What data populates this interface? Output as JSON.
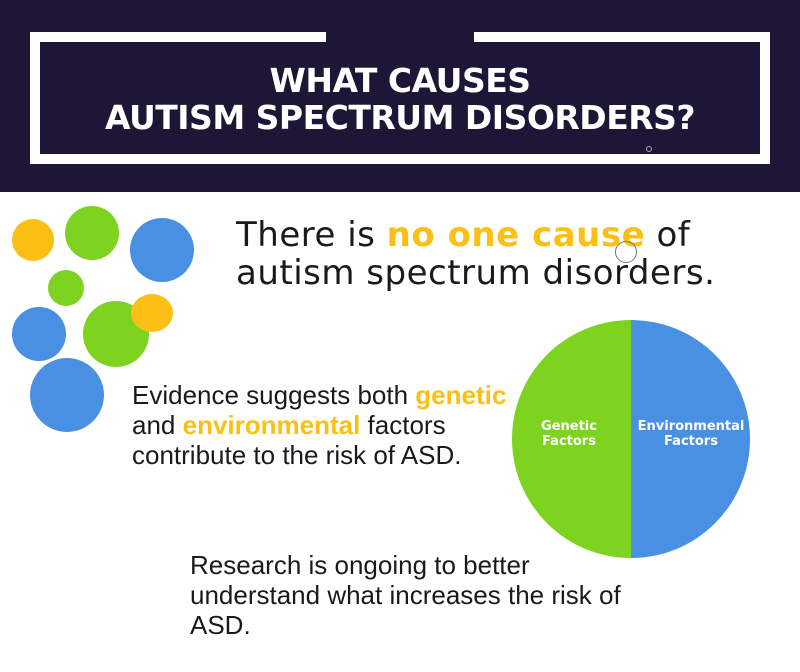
{
  "header": {
    "title_line1": "WHAT CAUSES",
    "title_line2": "AUTISM SPECTRUM DISORDERS?"
  },
  "headline": {
    "prefix": "There is ",
    "highlight": "no one cause",
    "suffix": " of autism spectrum disorders."
  },
  "evidence": {
    "part1": "Evidence suggests both ",
    "genetic": "genetic",
    "part2": " and ",
    "environmental": "environmental",
    "part3": " factors  contribute to the risk of ASD."
  },
  "research": {
    "text": "Research is ongoing to better understand what increases the risk of ASD."
  },
  "pie": {
    "slices": [
      {
        "label_line1": "Genetic",
        "label_line2": "Factors",
        "value": 50,
        "color": "#7ed321"
      },
      {
        "label_line1": "Environmental",
        "label_line2": "Factors",
        "value": 50,
        "color": "#4a90e2"
      }
    ]
  },
  "colors": {
    "banner": "#1e1636",
    "highlight": "#fcc015",
    "green": "#7ed321",
    "blue": "#4a90e2",
    "yellow": "#fcc015"
  }
}
